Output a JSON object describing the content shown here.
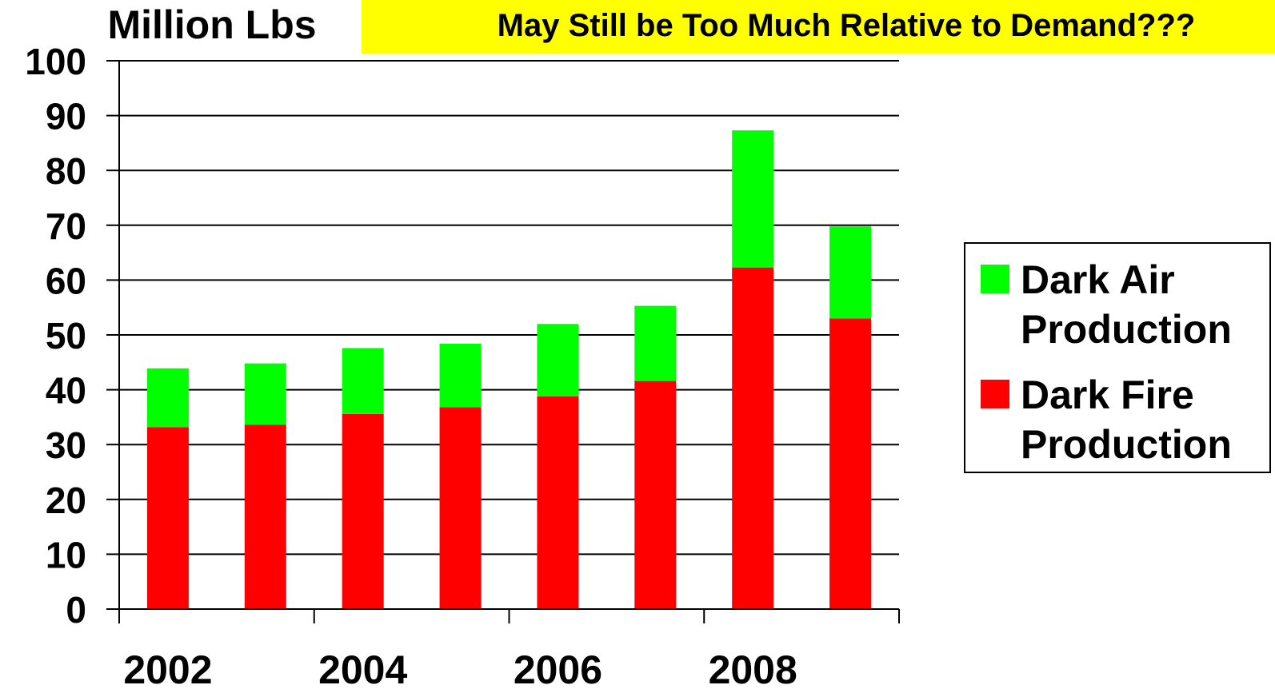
{
  "chart_data": {
    "type": "bar",
    "stacked": true,
    "title": "May Still be Too Much Relative to Demand???",
    "title_background": "#ffff00",
    "ylabel": "Million Lbs",
    "xlabel": "",
    "ylim": [
      0,
      100
    ],
    "yticks": [
      "0",
      "10",
      "20",
      "30",
      "40",
      "50",
      "60",
      "70",
      "80",
      "90",
      "100"
    ],
    "xtick_labels": [
      "2002",
      "2004",
      "2006",
      "2008"
    ],
    "categories": [
      "2002",
      "2003",
      "2004",
      "2005",
      "2006",
      "2007",
      "2008",
      "2009"
    ],
    "grid": true,
    "legend_position": "right",
    "series": [
      {
        "name": "Dark Fire Production",
        "color": "#ff0000",
        "values": [
          33.2,
          33.6,
          35.6,
          36.8,
          38.8,
          41.6,
          62.3,
          53.0
        ]
      },
      {
        "name": "Dark Air Production",
        "color": "#00ff00",
        "values": [
          10.7,
          11.2,
          12.0,
          11.6,
          13.2,
          13.7,
          25.0,
          16.8
        ]
      }
    ],
    "legend": [
      {
        "line1": "Dark Air",
        "line2": "Production",
        "color": "#00ff00"
      },
      {
        "line1": "Dark Fire",
        "line2": "Production",
        "color": "#ff0000"
      }
    ]
  }
}
